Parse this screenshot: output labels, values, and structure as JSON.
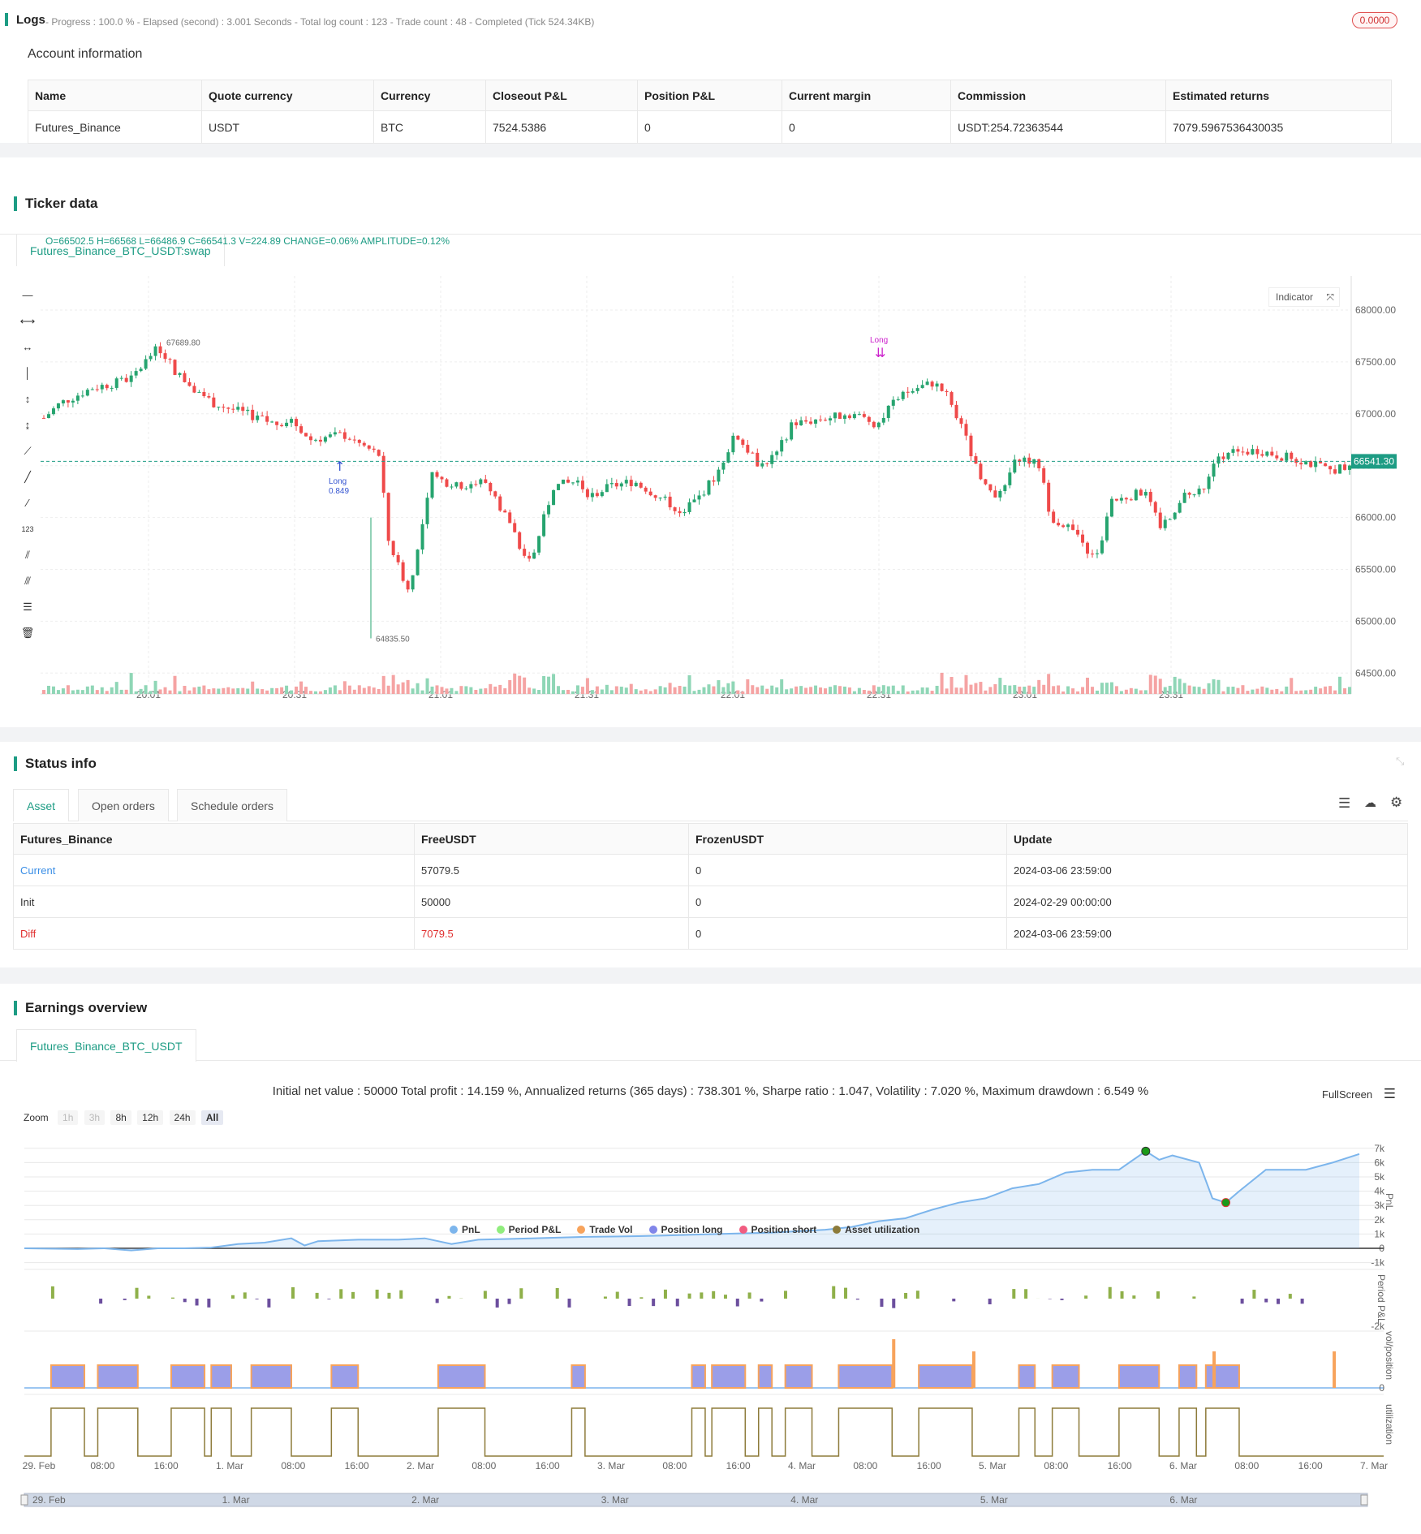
{
  "logs": {
    "title": "Logs",
    "summary": "- Progress : 100.0 % - Elapsed (second) : 3.001 Seconds - Total log count : 123 - Trade count : 48 - Completed (Tick 524.34KB)",
    "badge": "0.0000"
  },
  "account": {
    "title": "Account information",
    "headers": [
      "Name",
      "Quote currency",
      "Currency",
      "Closeout P&L",
      "Position P&L",
      "Current margin",
      "Commission",
      "Estimated returns"
    ],
    "row": [
      "Futures_Binance",
      "USDT",
      "BTC",
      "7524.5386",
      "0",
      "0",
      "USDT:254.72363544",
      "7079.5967536430035"
    ]
  },
  "ticker": {
    "title": "Ticker data",
    "tab": "Futures_Binance_BTC_USDT:swap",
    "ohlc": "O=66502.5 H=66568 L=66486.9 C=66541.3 V=224.89 CHANGE=0.06% AMPLITUDE=0.12%",
    "indicator_btn": "Indicator",
    "last_price": "66541.30",
    "high_label": "67689.80",
    "low_label": "64835.50",
    "long_label": "Long",
    "long_qty": "0.849",
    "close_label": "Long",
    "y_ticks": [
      "68000.00",
      "67500.00",
      "67000.00",
      "66500.00",
      "66000.00",
      "65500.00",
      "65000.00",
      "64500.00"
    ],
    "x_ticks": [
      "20:01",
      "20:31",
      "21:01",
      "21:31",
      "22:01",
      "22:31",
      "23:01",
      "23:31"
    ]
  },
  "status": {
    "title": "Status info",
    "tabs": [
      "Asset",
      "Open orders",
      "Schedule orders"
    ],
    "headers": [
      "Futures_Binance",
      "FreeUSDT",
      "FrozenUSDT",
      "Update"
    ],
    "rows": [
      [
        "Current",
        "57079.5",
        "0",
        "2024-03-06 23:59:00"
      ],
      [
        "Init",
        "50000",
        "0",
        "2024-02-29 00:00:00"
      ],
      [
        "Diff",
        "7079.5",
        "0",
        "2024-03-06 23:59:00"
      ]
    ],
    "colors": {
      "current": "#3a8ee6",
      "diff": "#e03030"
    }
  },
  "earnings": {
    "title": "Earnings overview",
    "tab": "Futures_Binance_BTC_USDT",
    "summary": "Initial net value : 50000 Total profit : 14.159 %, Annualized returns (365 days) : 738.301 %, Sharpe ratio : 1.047, Volatility : 7.020 %, Maximum drawdown : 6.549 %",
    "fullscreen": "FullScreen",
    "zoom_label": "Zoom",
    "zoom_buttons": [
      "1h",
      "3h",
      "8h",
      "12h",
      "24h",
      "All"
    ],
    "pnl_ticks": [
      "7k",
      "6k",
      "5k",
      "4k",
      "3k",
      "2k",
      "1k",
      "0",
      "-1k"
    ],
    "pnl_axis": "PnL",
    "period_axis": "Period P&L",
    "period_tick": "-2k",
    "vol_axis": "vol/position",
    "vol_tick": "0",
    "util_axis": "utilization",
    "x_ticks": [
      "29. Feb",
      "08:00",
      "16:00",
      "1. Mar",
      "08:00",
      "16:00",
      "2. Mar",
      "08:00",
      "16:00",
      "3. Mar",
      "08:00",
      "16:00",
      "4. Mar",
      "08:00",
      "16:00",
      "5. Mar",
      "08:00",
      "16:00",
      "6. Mar",
      "08:00",
      "16:00",
      "7. Mar"
    ],
    "legend": [
      {
        "name": "PnL",
        "color": "#7cb5ec"
      },
      {
        "name": "Period P&L",
        "color": "#90ed7d"
      },
      {
        "name": "Trade Vol",
        "color": "#f7a35c"
      },
      {
        "name": "Position long",
        "color": "#8085e9"
      },
      {
        "name": "Position short",
        "color": "#f15c80"
      },
      {
        "name": "Asset utilization",
        "color": "#8d7b3a"
      }
    ],
    "navigator_ticks": [
      "29. Feb",
      "1. Mar",
      "2. Mar",
      "3. Mar",
      "4. Mar",
      "5. Mar",
      "6. Mar"
    ]
  }
}
